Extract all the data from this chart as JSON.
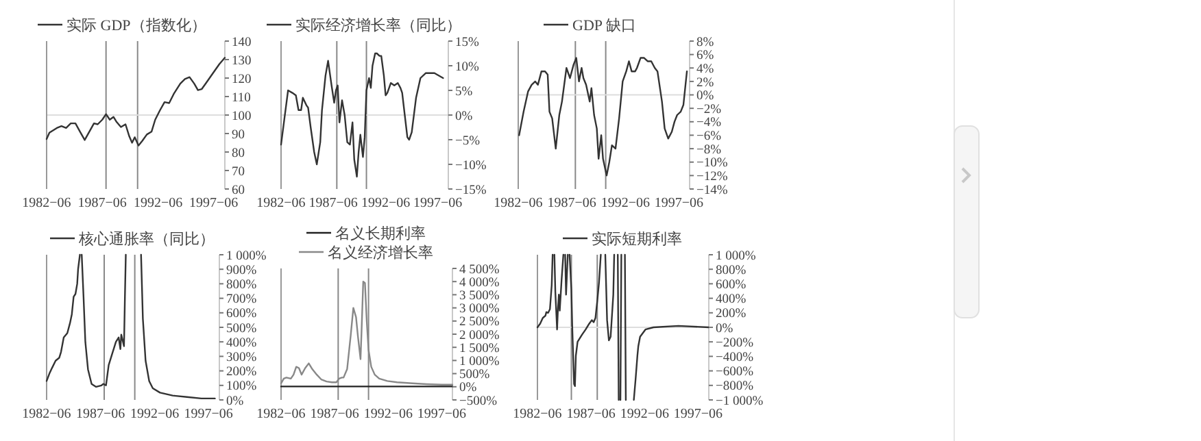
{
  "chart_data": [
    {
      "type": "line",
      "legend": "top",
      "xlim": [
        "1982-06",
        "1998-06"
      ],
      "xticks": [
        {
          "value": "1982-06",
          "label": "1982−06"
        },
        {
          "value": "1987-06",
          "label": "1987−06"
        },
        {
          "value": "1992-06",
          "label": "1992−06"
        },
        {
          "value": "1997-06",
          "label": "1997−06"
        }
      ],
      "ylim": [
        60,
        140
      ],
      "yticks": [
        60,
        70,
        80,
        90,
        100,
        110,
        120,
        130,
        140
      ],
      "ref_lines": [
        {
          "axis": "x",
          "value": "1987-10",
          "color": "#888888"
        },
        {
          "axis": "x",
          "value": "1990-08",
          "color": "#888888"
        },
        {
          "axis": "y",
          "value": 100,
          "color": "#dddddd"
        }
      ],
      "series": [
        {
          "name": "实际 GDP（指数化）",
          "color": "#333333",
          "x": [
            "1982-06",
            "1982-09",
            "1983-05",
            "1983-10",
            "1984-03",
            "1984-08",
            "1985-01",
            "1985-06",
            "1985-11",
            "1986-04",
            "1986-09",
            "1987-01",
            "1987-06",
            "1987-10",
            "1988-02",
            "1988-06",
            "1988-09",
            "1989-02",
            "1989-07",
            "1989-11",
            "1990-02",
            "1990-05",
            "1990-09",
            "1991-01",
            "1991-06",
            "1991-11",
            "1992-03",
            "1992-08",
            "1993-01",
            "1993-06",
            "1993-11",
            "1994-06",
            "1994-11",
            "1995-04",
            "1995-09",
            "1996-01",
            "1996-05",
            "1996-10",
            "1997-05",
            "1997-12",
            "1998-06"
          ],
          "values": [
            87,
            90.5,
            93,
            94,
            93,
            95.5,
            95.5,
            91,
            86.5,
            91,
            95.5,
            95,
            97.5,
            100.5,
            97.5,
            99,
            96.5,
            93.5,
            95,
            88.5,
            85,
            88,
            83.5,
            86,
            89.5,
            91,
            97.5,
            102.5,
            107,
            106.5,
            111.5,
            117,
            119.5,
            120.5,
            117,
            113.5,
            114,
            117.5,
            122.5,
            127.5,
            131
          ]
        }
      ]
    },
    {
      "type": "line",
      "legend": "top",
      "xlim": [
        "1982-06",
        "1998-06"
      ],
      "xticks": [
        {
          "value": "1982-06",
          "label": "1982−06"
        },
        {
          "value": "1987-06",
          "label": "1987−06"
        },
        {
          "value": "1992-06",
          "label": "1992−06"
        },
        {
          "value": "1997-06",
          "label": "1997−06"
        }
      ],
      "ylim": [
        -15,
        15
      ],
      "yticks": [
        {
          "value": -15,
          "label": "−15%"
        },
        {
          "value": -10,
          "label": "−10%"
        },
        {
          "value": -5,
          "label": "−5%"
        },
        {
          "value": 0,
          "label": "0%"
        },
        {
          "value": 5,
          "label": "5%"
        },
        {
          "value": 10,
          "label": "10%"
        },
        {
          "value": 15,
          "label": "15%"
        }
      ],
      "ref_lines": [
        {
          "axis": "x",
          "value": "1987-10",
          "color": "#888888"
        },
        {
          "axis": "x",
          "value": "1990-08",
          "color": "#888888"
        },
        {
          "axis": "y",
          "value": 0,
          "color": "#dddddd"
        }
      ],
      "series": [
        {
          "name": "实际经济增长率（同比）",
          "color": "#333333",
          "x": [
            "1982-06",
            "1982-10",
            "1983-02",
            "1983-07",
            "1983-11",
            "1984-02",
            "1984-05",
            "1984-07",
            "1984-11",
            "1985-01",
            "1985-04",
            "1985-08",
            "1985-11",
            "1986-03",
            "1986-05",
            "1986-09",
            "1986-12",
            "1987-04",
            "1987-07",
            "1987-09",
            "1987-11",
            "1988-01",
            "1988-04",
            "1988-07",
            "1988-10",
            "1989-01",
            "1989-04",
            "1989-06",
            "1989-09",
            "1989-11",
            "1990-01",
            "1990-04",
            "1990-06",
            "1990-08",
            "1990-11",
            "1991-01",
            "1991-03",
            "1991-06",
            "1991-08",
            "1991-11",
            "1992-01",
            "1992-04",
            "1992-06",
            "1992-08",
            "1992-12",
            "1993-04",
            "1993-08",
            "1993-11",
            "1994-01",
            "1994-04",
            "1994-07",
            "1994-09",
            "1994-12",
            "1995-05",
            "1995-10",
            "1996-04",
            "1997-02",
            "1997-12"
          ],
          "values": [
            -6,
            -0.5,
            5,
            4.5,
            4,
            1,
            1,
            3.5,
            2,
            1.5,
            -2.5,
            -7.5,
            -10,
            -5.5,
            1,
            8,
            11,
            6,
            2.5,
            5,
            6,
            -1.5,
            3,
            0,
            -5.5,
            -6,
            -1.5,
            -9,
            -12.5,
            -7.5,
            -4,
            -8.5,
            -4.5,
            5,
            7.5,
            5.5,
            10,
            12.5,
            12.5,
            12,
            12,
            8,
            4,
            4.5,
            6.5,
            6,
            6.5,
            5.5,
            4.5,
            0,
            -4.5,
            -5,
            -3.5,
            3.5,
            7.5,
            8.5,
            8.5,
            7.5
          ]
        }
      ]
    },
    {
      "type": "line",
      "legend": "top",
      "xlim": [
        "1982-06",
        "1998-06"
      ],
      "xticks": [
        {
          "value": "1982-06",
          "label": "1982−06"
        },
        {
          "value": "1987-06",
          "label": "1987−06"
        },
        {
          "value": "1992-06",
          "label": "1992−06"
        },
        {
          "value": "1997-06",
          "label": "1997−06"
        }
      ],
      "ylim": [
        -14,
        8
      ],
      "yticks": [
        {
          "value": -14,
          "label": "−14%"
        },
        {
          "value": -12,
          "label": "−12%"
        },
        {
          "value": -10,
          "label": "−10%"
        },
        {
          "value": -8,
          "label": "−8%"
        },
        {
          "value": -6,
          "label": "−6%"
        },
        {
          "value": -4,
          "label": "−4%"
        },
        {
          "value": -2,
          "label": "−2%"
        },
        {
          "value": 0,
          "label": "0%"
        },
        {
          "value": 2,
          "label": "2%"
        },
        {
          "value": 4,
          "label": "4%"
        },
        {
          "value": 6,
          "label": "6%"
        },
        {
          "value": 8,
          "label": "8%"
        }
      ],
      "ref_lines": [
        {
          "axis": "x",
          "value": "1987-10",
          "color": "#888888"
        },
        {
          "axis": "x",
          "value": "1990-08",
          "color": "#888888"
        },
        {
          "axis": "y",
          "value": 0,
          "color": "#dddddd"
        }
      ],
      "series": [
        {
          "name": "GDP 缺口",
          "color": "#333333",
          "x": [
            "1982-07",
            "1982-12",
            "1983-05",
            "1983-09",
            "1984-01",
            "1984-04",
            "1984-08",
            "1984-12",
            "1985-03",
            "1985-05",
            "1985-08",
            "1985-12",
            "1986-04",
            "1986-07",
            "1986-12",
            "1987-04",
            "1987-08",
            "1987-11",
            "1988-02",
            "1988-05",
            "1988-07",
            "1988-10",
            "1989-02",
            "1989-04",
            "1989-07",
            "1989-10",
            "1989-12",
            "1990-03",
            "1990-05",
            "1990-09",
            "1990-12",
            "1991-03",
            "1991-07",
            "1991-11",
            "1992-03",
            "1992-07",
            "1992-10",
            "1993-01",
            "1993-05",
            "1993-07",
            "1993-11",
            "1994-03",
            "1994-07",
            "1994-11",
            "1995-03",
            "1995-06",
            "1995-11",
            "1996-02",
            "1996-06",
            "1996-10",
            "1997-01",
            "1997-04",
            "1997-08",
            "1997-11",
            "1998-03"
          ],
          "values": [
            -6,
            -2.5,
            0.5,
            1.5,
            2,
            1.5,
            3.5,
            3.5,
            3,
            -2.5,
            -3.5,
            -8,
            -3,
            -1,
            4,
            2.5,
            4.5,
            5.5,
            2,
            4,
            2.5,
            1.5,
            -1,
            1,
            -3,
            -5,
            -9.5,
            -6,
            -9.5,
            -12,
            -10,
            -7.5,
            -8,
            -3.5,
            2,
            3.5,
            5,
            3.5,
            3.5,
            4,
            5.5,
            5.5,
            5,
            5,
            4,
            3.5,
            -1,
            -5,
            -6.5,
            -5.5,
            -4,
            -3,
            -2.5,
            -1.5,
            3.5
          ]
        }
      ]
    },
    {
      "type": "line",
      "legend": "top",
      "xlim": [
        "1982-06",
        "1998-06"
      ],
      "xticks": [
        {
          "value": "1982-06",
          "label": "1982−06"
        },
        {
          "value": "1987-06",
          "label": "1987−06"
        },
        {
          "value": "1992-06",
          "label": "1992−06"
        },
        {
          "value": "1997-06",
          "label": "1997−06"
        }
      ],
      "ylim": [
        0,
        1000
      ],
      "yticks": [
        {
          "value": 0,
          "label": "0%"
        },
        {
          "value": 100,
          "label": "100%"
        },
        {
          "value": 200,
          "label": "200%"
        },
        {
          "value": 300,
          "label": "300%"
        },
        {
          "value": 400,
          "label": "400%"
        },
        {
          "value": 500,
          "label": "500%"
        },
        {
          "value": 600,
          "label": "600%"
        },
        {
          "value": 700,
          "label": "700%"
        },
        {
          "value": 800,
          "label": "800%"
        },
        {
          "value": 900,
          "label": "900%"
        },
        {
          "value": 1000,
          "label": "1 000%"
        }
      ],
      "ref_lines": [
        {
          "axis": "x",
          "value": "1987-10",
          "color": "#888888"
        },
        {
          "axis": "x",
          "value": "1990-08",
          "color": "#888888"
        }
      ],
      "series": [
        {
          "name": "核心通胀率（同比）",
          "color": "#333333",
          "x": [
            "1982-06",
            "1982-09",
            "1982-12",
            "1983-04",
            "1983-08",
            "1983-10",
            "1984-01",
            "1984-05",
            "1984-08",
            "1984-10",
            "1984-12",
            "1985-02",
            "1985-04",
            "1985-05",
            "1985-07",
            "1985-08",
            "1985-09",
            "1985-11",
            "1986-01",
            "1986-04",
            "1986-08",
            "1987-01",
            "1987-07",
            "1987-09",
            "1987-12",
            "1988-03",
            "1988-07",
            "1988-11",
            "1989-02",
            "1989-04",
            "1989-05",
            "1989-08",
            "1989-09",
            "1989-10",
            "1990-06",
            "1991-03",
            "1991-05",
            "1991-08",
            "1991-12",
            "1992-04",
            "1992-12",
            "1994-02",
            "1995-06",
            "1996-10",
            "1998-01"
          ],
          "values": [
            130,
            180,
            220,
            270,
            290,
            330,
            430,
            460,
            530,
            590,
            710,
            730,
            800,
            900,
            1000,
            null,
            1000,
            710,
            400,
            210,
            110,
            90,
            100,
            110,
            100,
            240,
            320,
            400,
            430,
            350,
            450,
            370,
            710,
            1000,
            null,
            1000,
            560,
            270,
            130,
            80,
            50,
            30,
            20,
            10,
            10
          ]
        }
      ]
    },
    {
      "type": "line",
      "legend": "top",
      "xlim": [
        "1982-06",
        "1998-06"
      ],
      "xticks": [
        {
          "value": "1982-06",
          "label": "1982−06"
        },
        {
          "value": "1987-06",
          "label": "1987−06"
        },
        {
          "value": "1992-06",
          "label": "1992−06"
        },
        {
          "value": "1997-06",
          "label": "1997−06"
        }
      ],
      "ylim": [
        -500,
        4500
      ],
      "yticks": [
        {
          "value": -500,
          "label": "−500%"
        },
        {
          "value": 0,
          "label": "0%"
        },
        {
          "value": 500,
          "label": "500%"
        },
        {
          "value": 1000,
          "label": "1 000%"
        },
        {
          "value": 1500,
          "label": "1 500%"
        },
        {
          "value": 2000,
          "label": "2 000%"
        },
        {
          "value": 2500,
          "label": "2 500%"
        },
        {
          "value": 3000,
          "label": "3 000%"
        },
        {
          "value": 3500,
          "label": "3 500%"
        },
        {
          "value": 4000,
          "label": "4 000%"
        },
        {
          "value": 4500,
          "label": "4 500%"
        }
      ],
      "ref_lines": [
        {
          "axis": "x",
          "value": "1987-10",
          "color": "#888888"
        },
        {
          "axis": "x",
          "value": "1990-08",
          "color": "#888888"
        }
      ],
      "series": [
        {
          "name": "名义长期利率",
          "color": "#222222",
          "x": [
            "1982-06",
            "1985-06",
            "1988-06",
            "1991-06",
            "1994-06",
            "1998-06"
          ],
          "values": [
            10,
            10,
            10,
            10,
            10,
            10
          ]
        },
        {
          "name": "名义经济增长率",
          "color": "#888888",
          "x": [
            "1982-06",
            "1982-09",
            "1982-12",
            "1983-05",
            "1983-08",
            "1983-11",
            "1984-02",
            "1984-05",
            "1984-09",
            "1985-01",
            "1985-05",
            "1985-10",
            "1986-03",
            "1986-09",
            "1987-03",
            "1987-08",
            "1987-11",
            "1988-02",
            "1988-04",
            "1988-08",
            "1988-12",
            "1989-03",
            "1989-06",
            "1989-08",
            "1989-11",
            "1989-12",
            "1990-02",
            "1990-04",
            "1990-06",
            "1990-08",
            "1990-11",
            "1991-03",
            "1991-08",
            "1992-05",
            "1993-04",
            "1994-09",
            "1996-01",
            "1997-06",
            "1998-06"
          ],
          "values": [
            130,
            310,
            350,
            310,
            460,
            760,
            710,
            460,
            710,
            890,
            670,
            460,
            280,
            200,
            170,
            170,
            310,
            350,
            350,
            670,
            1950,
            3000,
            2650,
            1950,
            1050,
            1950,
            4000,
            3950,
            2500,
            1400,
            760,
            460,
            310,
            220,
            170,
            130,
            100,
            80,
            80
          ]
        }
      ]
    },
    {
      "type": "line",
      "legend": "top",
      "xlim": [
        "1982-06",
        "1998-06"
      ],
      "xticks": [
        {
          "value": "1982-06",
          "label": "1982−06"
        },
        {
          "value": "1987-06",
          "label": "1987−06"
        },
        {
          "value": "1992-06",
          "label": "1992−06"
        },
        {
          "value": "1997-06",
          "label": "1997−06"
        }
      ],
      "ylim": [
        -1000,
        1000
      ],
      "yticks": [
        {
          "value": -1000,
          "label": "−1 000%"
        },
        {
          "value": -800,
          "label": "−800%"
        },
        {
          "value": -600,
          "label": "−600%"
        },
        {
          "value": -400,
          "label": "−400%"
        },
        {
          "value": -200,
          "label": "−200%"
        },
        {
          "value": 0,
          "label": "0%"
        },
        {
          "value": 200,
          "label": "200%"
        },
        {
          "value": 400,
          "label": "400%"
        },
        {
          "value": 600,
          "label": "600%"
        },
        {
          "value": 800,
          "label": "800%"
        },
        {
          "value": 1000,
          "label": "1 000%"
        }
      ],
      "ref_lines": [
        {
          "axis": "x",
          "value": "1985-08",
          "color": "#888888"
        },
        {
          "axis": "x",
          "value": "1988-01",
          "color": "#888888"
        },
        {
          "axis": "y",
          "value": 0,
          "color": "#dddddd"
        }
      ],
      "series": [
        {
          "name": "实际短期利率",
          "color": "#333333",
          "x": [
            "1982-06",
            "1982-09",
            "1982-12",
            "1983-03",
            "1983-04",
            "1983-06",
            "1983-08",
            "1983-10",
            "1983-11",
            "1983-12",
            "1984-01",
            "1984-02",
            "1984-04",
            "1984-05",
            "1984-06",
            "1984-07",
            "1984-09",
            "1984-11",
            "1984-12",
            "1985-01",
            "1985-02",
            "1985-04",
            "1985-05",
            "1985-06",
            "1985-08",
            "1985-09",
            "1985-11",
            "1985-12",
            "1986-01",
            "1986-03",
            "1986-08",
            "1986-12",
            "1987-04",
            "1987-07",
            "1987-09",
            "1987-11",
            "1988-01",
            "1988-03",
            "1988-05",
            "1988-06",
            "1988-10",
            "1988-12",
            "1989-02",
            "1989-04",
            "1989-07",
            "1989-08",
            "1989-09",
            "1989-12",
            "1990-01",
            "1990-02",
            "1990-03",
            "1990-04",
            "1990-05",
            "1990-08",
            "1990-09",
            "1990-10",
            "1991-06",
            "1991-08",
            "1991-10",
            "1991-11",
            "1992-01",
            "1992-07",
            "1993-04",
            "1995-08",
            "1998-06"
          ],
          "values": [
            0,
            50,
            130,
            160,
            210,
            200,
            250,
            580,
            1000,
            null,
            1000,
            490,
            -30,
            260,
            450,
            230,
            650,
            1000,
            null,
            1000,
            450,
            1000,
            null,
            1000,
            520,
            0,
            -780,
            -810,
            -390,
            -200,
            -100,
            -30,
            50,
            100,
            70,
            130,
            360,
            620,
            1000,
            null,
            1000,
            100,
            -180,
            -130,
            450,
            1000,
            null,
            1000,
            -1000,
            null,
            -1000,
            1000,
            null,
            1000,
            -1000,
            null,
            -1000,
            -710,
            -390,
            -260,
            -130,
            -30,
            0,
            20,
            0
          ]
        }
      ]
    }
  ]
}
